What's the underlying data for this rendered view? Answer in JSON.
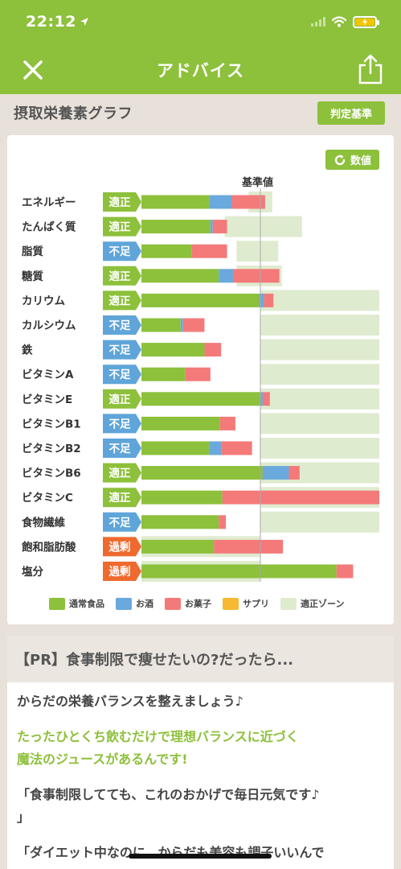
{
  "status": {
    "time": "22:12"
  },
  "nav": {
    "title": "アドバイス"
  },
  "section": {
    "title": "摂取栄養素グラフ",
    "judge_label": "判定基準"
  },
  "card": {
    "value_button": "数値",
    "reference_label": "基準値"
  },
  "colors": {
    "food": "#8dc03b",
    "alcohol": "#6aa9dd",
    "snack": "#f47a7a",
    "supplement": "#f6b931",
    "zone": "#dfebcf",
    "ok": "#8dc03b",
    "short": "#5fa5d9",
    "over": "#ee6a2f"
  },
  "chart_data": {
    "type": "bar",
    "stacked": true,
    "categories": [
      "エネルギー",
      "たんぱく質",
      "脂質",
      "糖質",
      "カリウム",
      "カルシウム",
      "鉄",
      "ビタミンA",
      "ビタミンE",
      "ビタミンB1",
      "ビタミンB2",
      "ビタミンB6",
      "ビタミンC",
      "食物繊維",
      "飽和脂肪酸",
      "塩分"
    ],
    "judgement": [
      "適正",
      "適正",
      "不足",
      "適正",
      "適正",
      "不足",
      "不足",
      "不足",
      "適正",
      "不足",
      "不足",
      "適正",
      "適正",
      "不足",
      "過剰",
      "過剰"
    ],
    "series": [
      {
        "name": "通常食品",
        "values": [
          57,
          58,
          42,
          65,
          99,
          33,
          53,
          37,
          100,
          66,
          57,
          102,
          68,
          65,
          61,
          164
        ]
      },
      {
        "name": "お酒",
        "values": [
          19,
          2,
          0,
          12,
          4,
          2,
          0,
          0,
          2,
          0,
          10,
          22,
          0,
          0,
          0,
          0
        ]
      },
      {
        "name": "お菓子",
        "values": [
          28,
          12,
          30,
          39,
          8,
          18,
          14,
          21,
          6,
          13,
          26,
          9,
          132,
          6,
          58,
          14
        ]
      },
      {
        "name": "サプリ",
        "values": [
          0,
          0,
          0,
          0,
          0,
          0,
          0,
          0,
          0,
          0,
          0,
          0,
          0,
          0,
          0,
          0
        ]
      }
    ],
    "optimal_zone": [
      [
        90,
        110
      ],
      [
        70,
        135
      ],
      [
        80,
        115
      ],
      [
        80,
        118
      ],
      [
        100,
        200
      ],
      [
        100,
        200
      ],
      [
        100,
        200
      ],
      [
        100,
        200
      ],
      [
        100,
        200
      ],
      [
        100,
        200
      ],
      [
        100,
        200
      ],
      [
        100,
        200
      ],
      [
        100,
        200
      ],
      [
        100,
        200
      ],
      [
        0,
        100
      ],
      [
        0,
        100
      ]
    ],
    "reference_value": 100,
    "legend": [
      "通常食品",
      "お酒",
      "お菓子",
      "サプリ",
      "適正ゾーン"
    ],
    "legend_placement": "bottom"
  },
  "pr": {
    "title": "【PR】食事制限で痩せたいの?だったら...",
    "line1": "からだの栄養バランスを整えましょう♪",
    "line2a": "たったひとくち飲むだけで理想バランスに近づく",
    "line2b": "魔法のジュースがあるんです!",
    "line3a": "「食事制限してても、これのおかげで毎日元気です♪",
    "line3b": "」",
    "line4": "「ダイエット中なのに、からだも美容も調子いいんで"
  }
}
